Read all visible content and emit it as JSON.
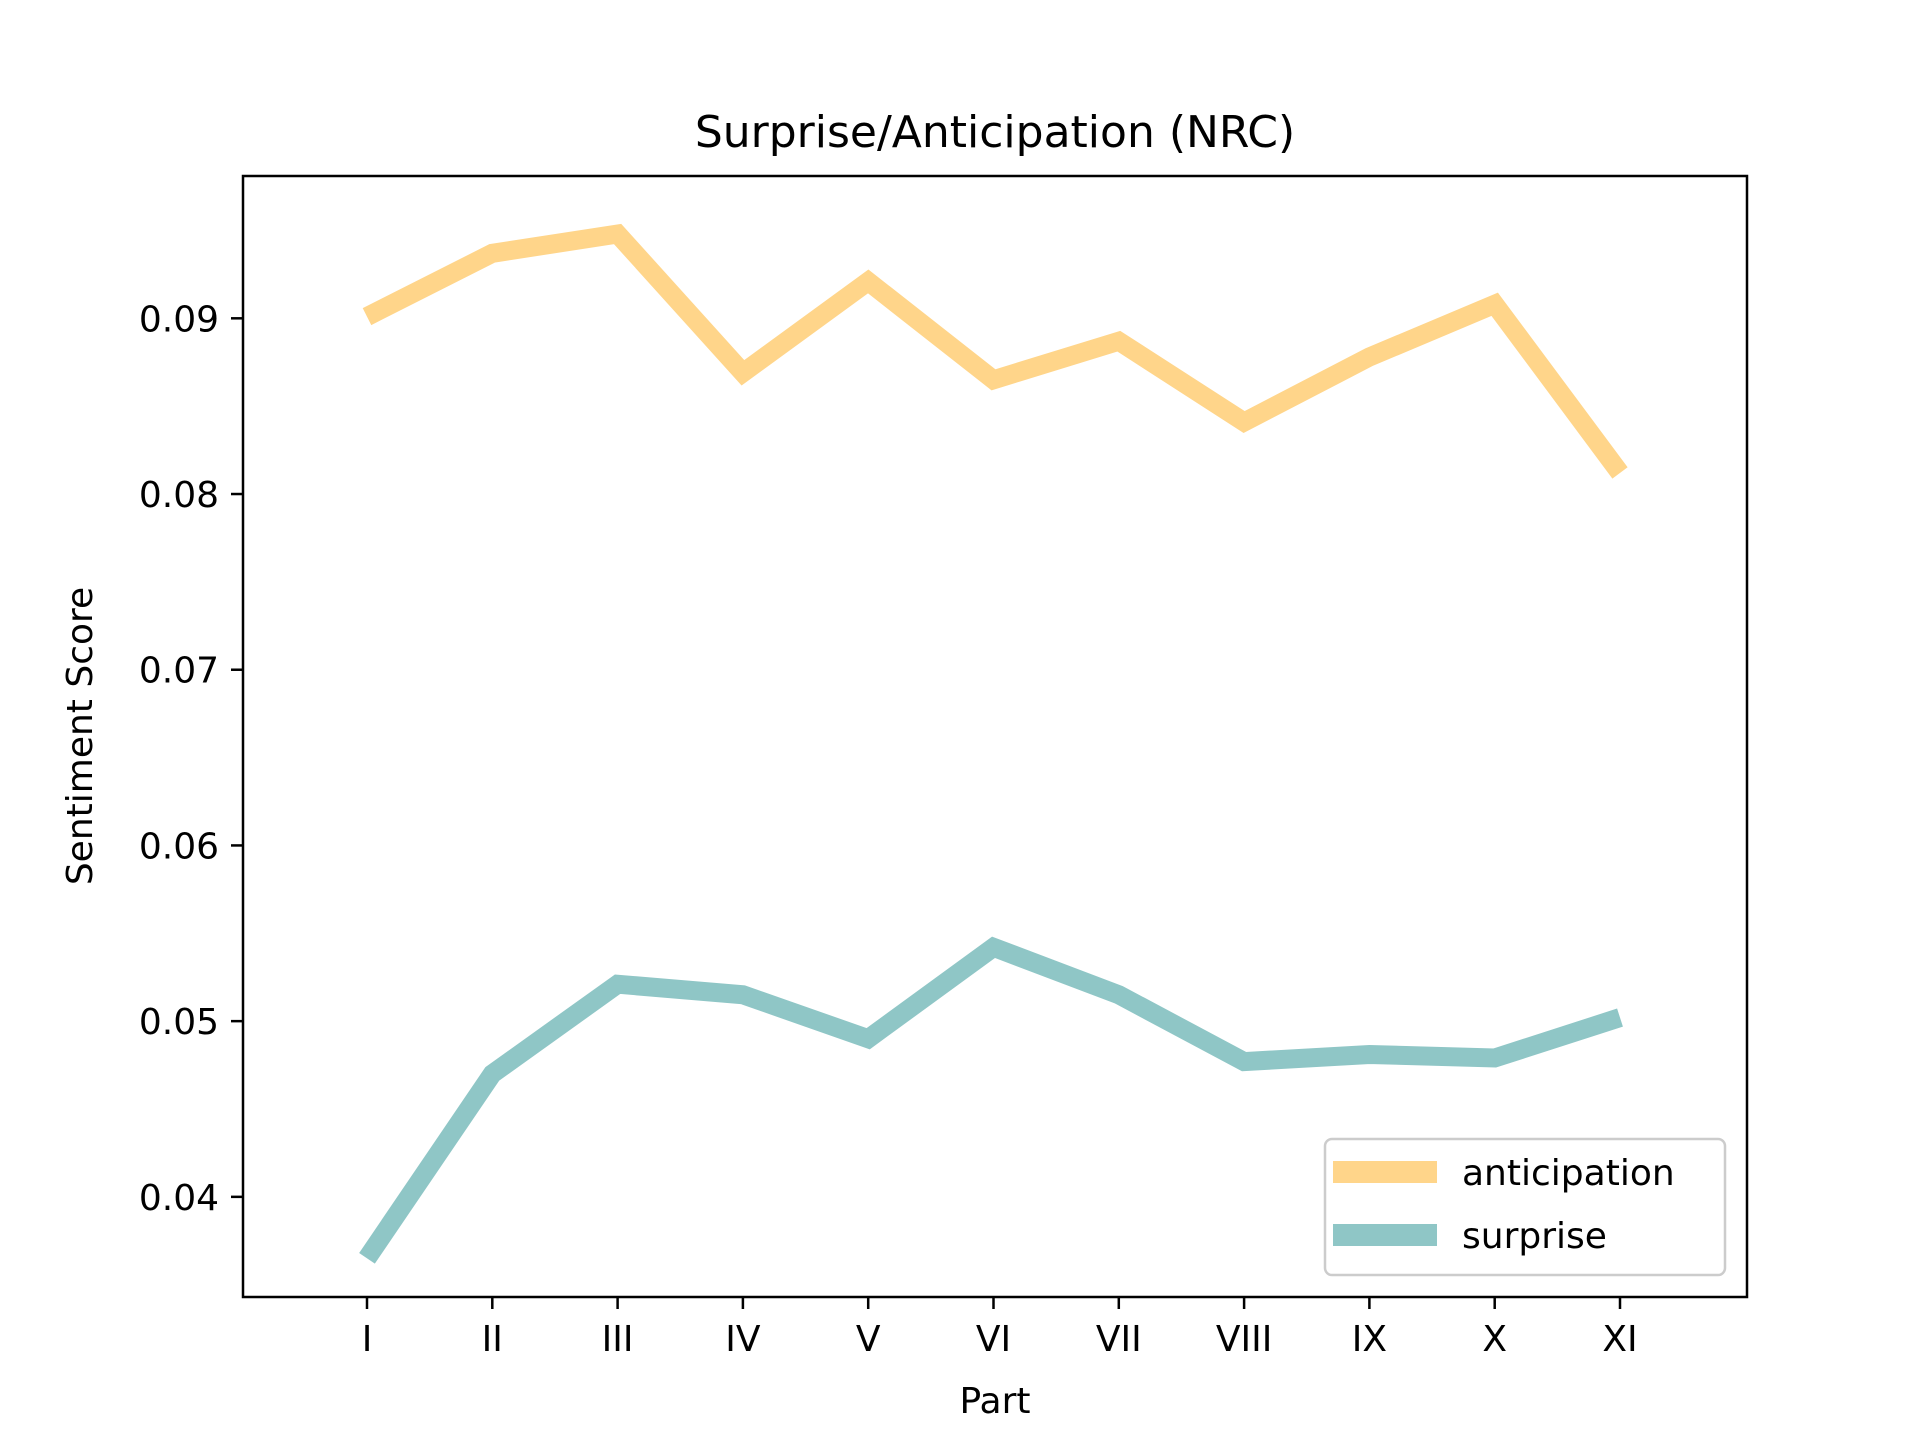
{
  "chart_data": {
    "type": "line",
    "title": "Surprise/Anticipation (NRC)",
    "xlabel": "Part",
    "ylabel": "Sentiment Score",
    "categories": [
      "I",
      "II",
      "III",
      "IV",
      "V",
      "VI",
      "VII",
      "VIII",
      "IX",
      "X",
      "XI"
    ],
    "series": [
      {
        "name": "anticipation",
        "color": "#FFD58A",
        "values": [
          0.0901,
          0.0937,
          0.0948,
          0.0869,
          0.0921,
          0.0865,
          0.0887,
          0.0841,
          0.0878,
          0.0908,
          0.0812
        ]
      },
      {
        "name": "surprise",
        "color": "#8FC6C6",
        "values": [
          0.0365,
          0.047,
          0.0521,
          0.0515,
          0.049,
          0.0542,
          0.0515,
          0.0477,
          0.0481,
          0.0479,
          0.0502
        ]
      }
    ],
    "yticks": [
      "0.04",
      "0.05",
      "0.06",
      "0.07",
      "0.08",
      "0.09"
    ],
    "ylim": [
      0.0343,
      0.0981
    ],
    "grid": false,
    "legend_position": "lower-right"
  }
}
